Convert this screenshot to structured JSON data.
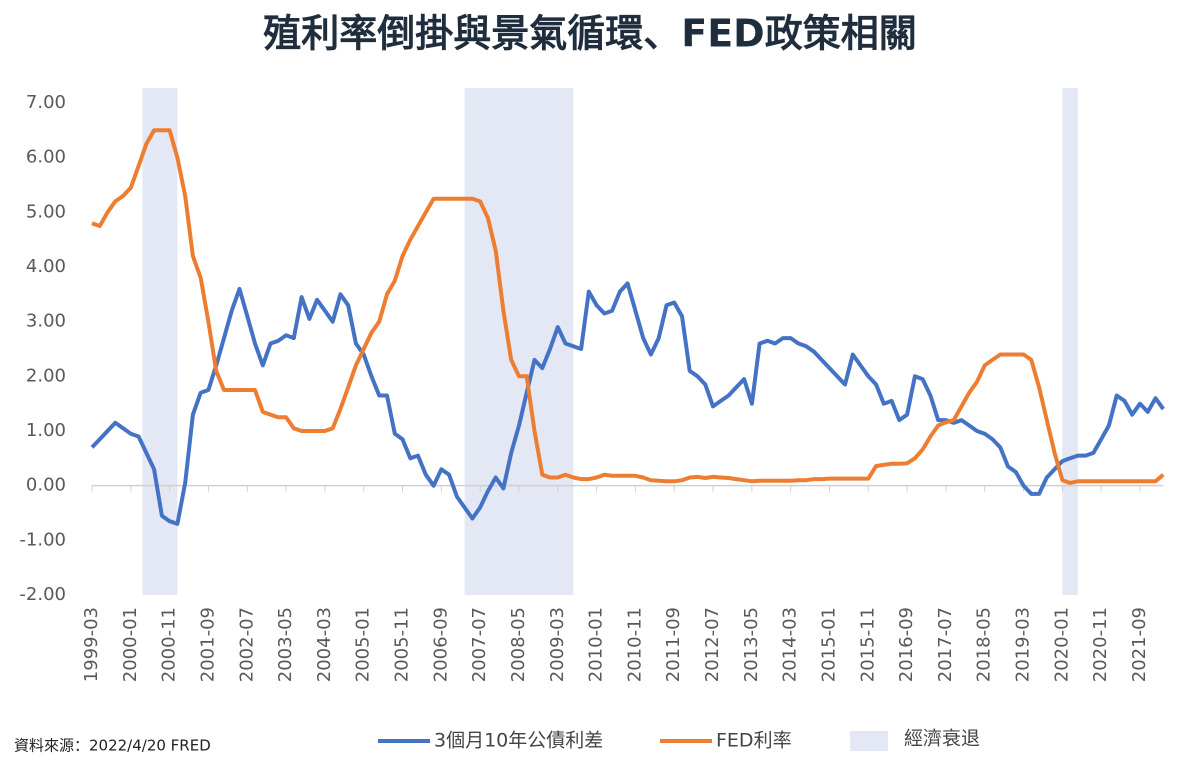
{
  "chart_data": {
    "type": "line",
    "title": "殖利率倒掛與景氣循環、FED政策相關",
    "source": "資料來源：2022/4/20 FRED",
    "categories": [
      "1999-03",
      null,
      null,
      null,
      null,
      "2000-01",
      null,
      null,
      null,
      null,
      "2000-11",
      null,
      null,
      null,
      null,
      "2001-09",
      null,
      null,
      null,
      null,
      "2002-07",
      null,
      null,
      null,
      null,
      "2003-05",
      null,
      null,
      null,
      null,
      "2004-03",
      null,
      null,
      null,
      null,
      "2005-01",
      null,
      null,
      null,
      null,
      "2005-11",
      null,
      null,
      null,
      null,
      "2006-09",
      null,
      null,
      null,
      null,
      "2007-07",
      null,
      null,
      null,
      null,
      "2008-05",
      null,
      null,
      null,
      null,
      "2009-03",
      null,
      null,
      null,
      null,
      "2010-01",
      null,
      null,
      null,
      null,
      "2010-11",
      null,
      null,
      null,
      null,
      "2011-09",
      null,
      null,
      null,
      null,
      "2012-07",
      null,
      null,
      null,
      null,
      "2013-05",
      null,
      null,
      null,
      null,
      "2014-03",
      null,
      null,
      null,
      null,
      "2015-01",
      null,
      null,
      null,
      null,
      "2015-11",
      null,
      null,
      null,
      null,
      "2016-09",
      null,
      null,
      null,
      null,
      "2017-07",
      null,
      null,
      null,
      null,
      "2018-05",
      null,
      null,
      null,
      null,
      "2019-03",
      null,
      null,
      null,
      null,
      "2020-01",
      null,
      null,
      null,
      null,
      "2020-11",
      null,
      null,
      null,
      null,
      "2021-09",
      null,
      null,
      null
    ],
    "series": [
      {
        "name": "3個月10年公債利差",
        "color": "#4472c4",
        "values": [
          0.7,
          0.85,
          1.0,
          1.15,
          1.05,
          0.95,
          0.9,
          0.6,
          0.3,
          -0.55,
          -0.65,
          -0.7,
          0.05,
          1.3,
          1.7,
          1.75,
          2.2,
          2.7,
          3.2,
          3.6,
          3.1,
          2.6,
          2.2,
          2.6,
          2.65,
          2.75,
          2.7,
          3.45,
          3.05,
          3.4,
          3.2,
          3.0,
          3.5,
          3.3,
          2.6,
          2.4,
          2.0,
          1.65,
          1.65,
          0.95,
          0.85,
          0.5,
          0.55,
          0.2,
          0.0,
          0.3,
          0.2,
          -0.2,
          -0.4,
          -0.6,
          -0.4,
          -0.1,
          0.15,
          -0.05,
          0.6,
          1.1,
          1.7,
          2.3,
          2.15,
          2.5,
          2.9,
          2.6,
          2.55,
          2.5,
          3.55,
          3.3,
          3.15,
          3.2,
          3.55,
          3.7,
          3.2,
          2.7,
          2.4,
          2.7,
          3.3,
          3.35,
          3.1,
          2.1,
          2.0,
          1.85,
          1.45,
          1.55,
          1.65,
          1.8,
          1.95,
          1.5,
          2.6,
          2.65,
          2.6,
          2.7,
          2.7,
          2.6,
          2.55,
          2.45,
          2.3,
          2.15,
          2.0,
          1.85,
          2.4,
          2.2,
          2.0,
          1.85,
          1.5,
          1.55,
          1.2,
          1.3,
          2.0,
          1.95,
          1.65,
          1.2,
          1.2,
          1.15,
          1.2,
          1.1,
          1.0,
          0.95,
          0.85,
          0.7,
          0.35,
          0.25,
          0.0,
          -0.15,
          -0.15,
          0.15,
          0.3,
          0.45,
          0.5,
          0.55,
          0.55,
          0.6,
          0.85,
          1.1,
          1.65,
          1.55,
          1.3,
          1.5,
          1.35,
          1.6,
          1.4
        ]
      },
      {
        "name": "FED利率",
        "color": "#ed7d31",
        "values": [
          4.8,
          4.75,
          5.0,
          5.2,
          5.3,
          5.45,
          5.85,
          6.25,
          6.5,
          6.5,
          6.5,
          6.0,
          5.3,
          4.2,
          3.8,
          3.0,
          2.1,
          1.75,
          1.75,
          1.75,
          1.75,
          1.75,
          1.35,
          1.3,
          1.25,
          1.25,
          1.05,
          1.0,
          1.0,
          1.0,
          1.0,
          1.05,
          1.4,
          1.8,
          2.2,
          2.5,
          2.8,
          3.0,
          3.5,
          3.75,
          4.2,
          4.5,
          4.75,
          5.0,
          5.25,
          5.25,
          5.25,
          5.25,
          5.25,
          5.25,
          5.2,
          4.9,
          4.3,
          3.2,
          2.3,
          2.0,
          2.0,
          1.0,
          0.2,
          0.15,
          0.15,
          0.2,
          0.15,
          0.12,
          0.12,
          0.15,
          0.2,
          0.18,
          0.18,
          0.18,
          0.18,
          0.15,
          0.1,
          0.09,
          0.08,
          0.08,
          0.1,
          0.15,
          0.16,
          0.14,
          0.16,
          0.15,
          0.14,
          0.12,
          0.1,
          0.08,
          0.09,
          0.09,
          0.09,
          0.09,
          0.09,
          0.1,
          0.1,
          0.12,
          0.12,
          0.13,
          0.13,
          0.13,
          0.13,
          0.13,
          0.13,
          0.36,
          0.38,
          0.4,
          0.4,
          0.41,
          0.5,
          0.66,
          0.9,
          1.1,
          1.16,
          1.2,
          1.45,
          1.7,
          1.9,
          2.2,
          2.3,
          2.4,
          2.4,
          2.4,
          2.4,
          2.3,
          1.8,
          1.2,
          0.6,
          0.1,
          0.05,
          0.08,
          0.08,
          0.08,
          0.08,
          0.08,
          0.08,
          0.08,
          0.08,
          0.08,
          0.08,
          0.08,
          0.2
        ]
      }
    ],
    "shading": {
      "name": "經濟衰退",
      "color": "#e4e8f4",
      "ranges": [
        [
          "2000-04",
          "2001-01"
        ],
        [
          "2007-03",
          "2009-07"
        ],
        [
          "2020-01",
          "2020-05"
        ]
      ]
    },
    "ylim": [
      -2,
      7
    ],
    "yticks": [
      {
        "value": 7,
        "label": "7.00"
      },
      {
        "value": 6,
        "label": "6.00"
      },
      {
        "value": 5,
        "label": "5.00"
      },
      {
        "value": 4,
        "label": "4.00"
      },
      {
        "value": 3,
        "label": "3.00"
      },
      {
        "value": 2,
        "label": "2.00"
      },
      {
        "value": 1,
        "label": "1.00"
      },
      {
        "value": 0,
        "label": "0.00"
      },
      {
        "value": -1,
        "label": "-1.00"
      },
      {
        "value": -2,
        "label": "-2.00"
      }
    ],
    "grid": false
  }
}
